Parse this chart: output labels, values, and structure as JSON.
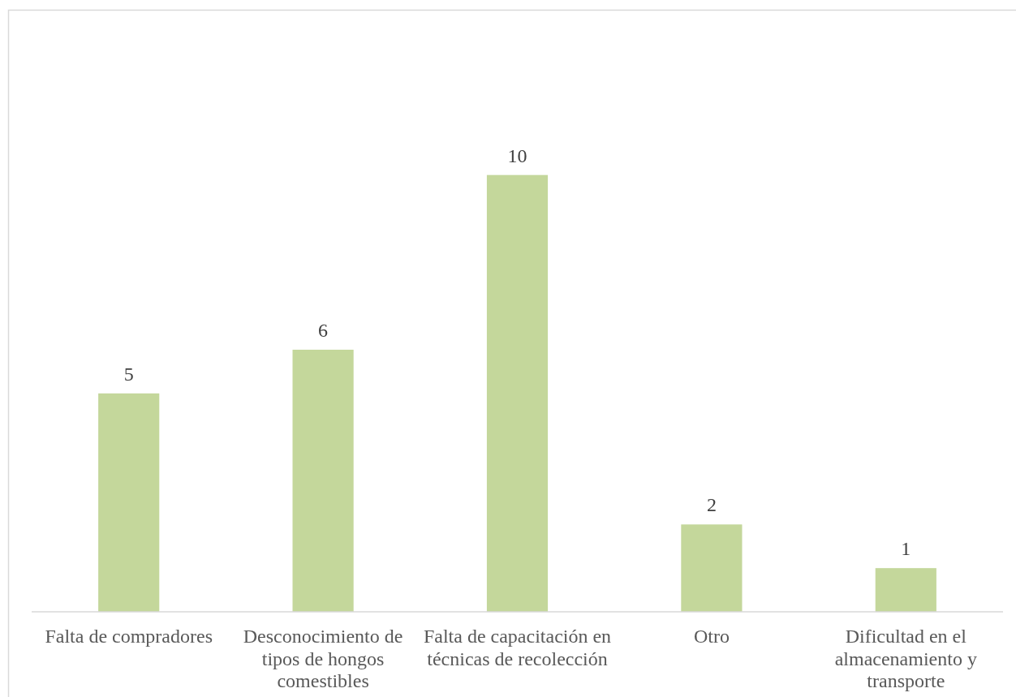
{
  "chart_data": {
    "type": "bar",
    "categories": [
      "Falta de compradores",
      "Desconocimiento de tipos de hongos comestibles",
      "Falta de capacitación en técnicas de recolección",
      "Otro",
      "Dificultad en el almacenamiento y transporte"
    ],
    "values": [
      5,
      6,
      10,
      2,
      1
    ],
    "color": "#c4d79b",
    "data_labels": true
  }
}
